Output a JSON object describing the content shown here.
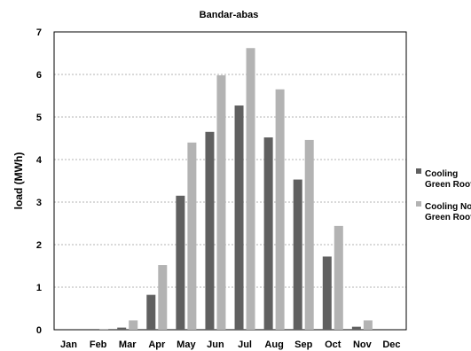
{
  "chart_data": {
    "type": "bar",
    "title": "Bandar-abas",
    "xlabel": "",
    "ylabel": "load (MWh)",
    "ylim": [
      0,
      7
    ],
    "yticks": [
      0,
      1,
      2,
      3,
      4,
      5,
      6,
      7
    ],
    "grid": true,
    "legend_position": "right",
    "categories": [
      "Jan",
      "Feb",
      "Mar",
      "Apr",
      "May",
      "Jun",
      "Jul",
      "Aug",
      "Sep",
      "Oct",
      "Nov",
      "Dec"
    ],
    "series": [
      {
        "name": "Cooling Green Roof",
        "legend_lines": [
          "Cooling",
          "Green Roof"
        ],
        "color": "#606060",
        "values": [
          0,
          0,
          0.05,
          0.82,
          3.15,
          4.65,
          5.27,
          4.52,
          3.53,
          1.72,
          0.07,
          0
        ]
      },
      {
        "name": "Cooling No Green Roof",
        "legend_lines": [
          "Cooling No",
          "Green Roof"
        ],
        "color": "#b3b3b3",
        "values": [
          0,
          0.02,
          0.22,
          1.52,
          4.4,
          5.98,
          6.62,
          5.65,
          4.46,
          2.44,
          0.22,
          0
        ]
      }
    ]
  }
}
